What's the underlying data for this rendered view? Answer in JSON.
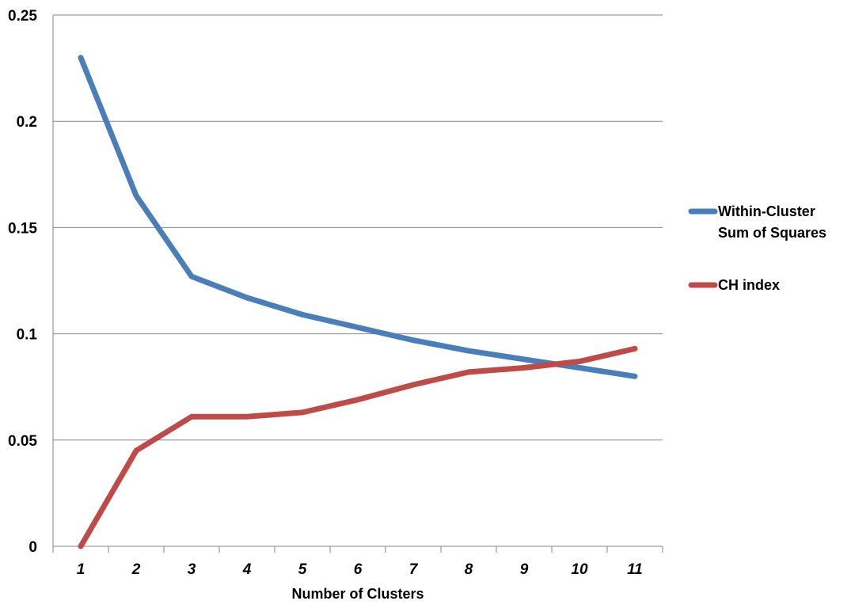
{
  "chart_data": {
    "type": "line",
    "title": "",
    "xlabel": "Number of Clusters",
    "ylabel": "",
    "categories": [
      "1",
      "2",
      "3",
      "4",
      "5",
      "6",
      "7",
      "8",
      "9",
      "10",
      "11"
    ],
    "y_ticks": [
      "0",
      "0.05",
      "0.1",
      "0.15",
      "0.2",
      "0.25"
    ],
    "ylim": [
      0,
      0.25
    ],
    "grid": true,
    "legend_position": "right",
    "series": [
      {
        "name": "Within-Cluster Sum of Squares",
        "legend_lines": [
          "Within-Cluster",
          "Sum of Squares"
        ],
        "color": "#4a7ebb",
        "values": [
          0.23,
          0.165,
          0.127,
          0.117,
          0.109,
          0.103,
          0.097,
          0.092,
          0.088,
          0.084,
          0.08
        ]
      },
      {
        "name": "CH index",
        "legend_lines": [
          "CH index"
        ],
        "color": "#be4b48",
        "values": [
          0.0,
          0.045,
          0.061,
          0.061,
          0.063,
          0.069,
          0.076,
          0.082,
          0.084,
          0.087,
          0.093
        ]
      }
    ]
  }
}
